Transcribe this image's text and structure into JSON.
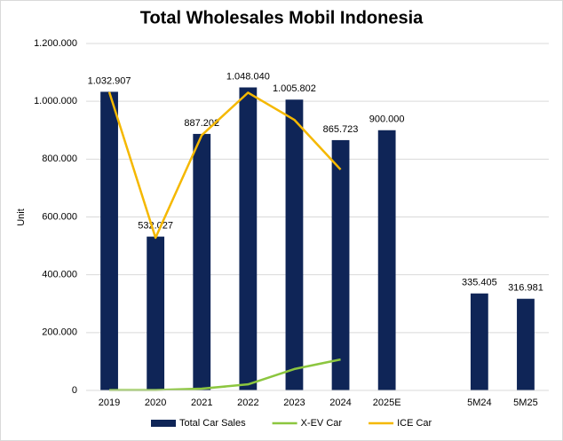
{
  "chart_data": {
    "type": "combo",
    "title": "Total Wholesales Mobil Indonesia",
    "y_label": "Unit",
    "categories": [
      "2019",
      "2020",
      "2021",
      "2022",
      "2023",
      "2024",
      "2025E",
      null,
      "5M24",
      "5M25"
    ],
    "series": [
      {
        "name": "Total Car Sales",
        "type": "bar",
        "color": "#0f2557",
        "values": [
          1032907,
          532027,
          887202,
          1048040,
          1005802,
          865723,
          900000,
          null,
          335405,
          316981
        ],
        "value_labels": [
          "1.032.907",
          "532.027",
          "887.202",
          "1.048.040",
          "1.005.802",
          "865.723",
          "900.000",
          null,
          "335.405",
          "316.981"
        ]
      },
      {
        "name": "X-EV Car",
        "type": "line",
        "color": "#8cc63f",
        "values": [
          1000,
          1000,
          6000,
          21000,
          74000,
          107000,
          null,
          null,
          null,
          null
        ]
      },
      {
        "name": "ICE Car",
        "type": "line",
        "color": "#f5b800",
        "values": [
          1032000,
          528000,
          883000,
          1030000,
          936000,
          764000,
          null,
          null,
          null,
          null
        ]
      }
    ],
    "ylim": [
      0,
      1200000
    ],
    "yticks": [
      0,
      {
        "value": 200000,
        "label": "200.000"
      },
      {
        "value": 400000,
        "label": "400.000"
      },
      {
        "value": 600000,
        "label": "600.000"
      },
      {
        "value": 800000,
        "label": "800.000"
      },
      {
        "value": 1000000,
        "label": "1.000.000"
      },
      {
        "value": 1200000,
        "label": "1.200.000"
      }
    ],
    "grid": true,
    "legend": "bottom"
  }
}
